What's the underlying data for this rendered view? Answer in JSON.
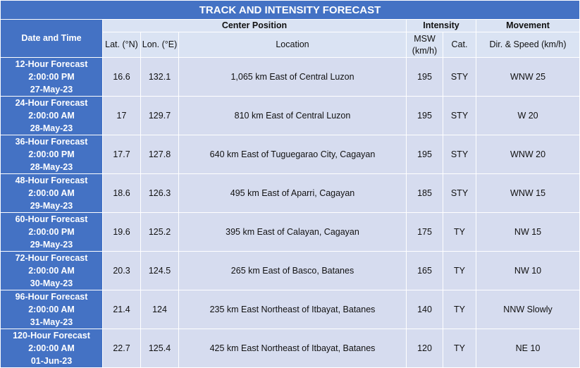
{
  "header": {
    "title": "TRACK AND INTENSITY FORECAST"
  },
  "table": {
    "groups": {
      "date_time": "Date and Time",
      "center_position": "Center Position",
      "intensity": "Intensity",
      "movement": "Movement"
    },
    "columns": {
      "lat": "Lat. (°N)",
      "lon": "Lon. (°E)",
      "location": "Location",
      "msw": "MSW (km/h)",
      "cat": "Cat.",
      "dir_speed": "Dir. & Speed (km/h)"
    },
    "rows": [
      {
        "date": [
          "12-Hour Forecast",
          "2:00:00 PM",
          "27-May-23"
        ],
        "lat": 16.6,
        "lon": 132.1,
        "location": "1,065 km East of Central Luzon",
        "msw": 195,
        "cat": "STY",
        "movement": "WNW 25"
      },
      {
        "date": [
          "24-Hour Forecast",
          "2:00:00 AM",
          "28-May-23"
        ],
        "lat": 17,
        "lon": 129.7,
        "location": "810 km East of Central Luzon",
        "msw": 195,
        "cat": "STY",
        "movement": "W 20"
      },
      {
        "date": [
          "36-Hour Forecast",
          "2:00:00 PM",
          "28-May-23"
        ],
        "lat": 17.7,
        "lon": 127.8,
        "location": "640 km East of Tuguegarao City, Cagayan",
        "msw": 195,
        "cat": "STY",
        "movement": "WNW 20"
      },
      {
        "date": [
          "48-Hour Forecast",
          "2:00:00 AM",
          "29-May-23"
        ],
        "lat": 18.6,
        "lon": 126.3,
        "location": "495 km East of Aparri, Cagayan",
        "msw": 185,
        "cat": "STY",
        "movement": "WNW 15"
      },
      {
        "date": [
          "60-Hour Forecast",
          "2:00:00 PM",
          "29-May-23"
        ],
        "lat": 19.6,
        "lon": 125.2,
        "location": "395 km East of Calayan, Cagayan",
        "msw": 175,
        "cat": "TY",
        "movement": "NW 15"
      },
      {
        "date": [
          "72-Hour Forecast",
          "2:00:00 AM",
          "30-May-23"
        ],
        "lat": 20.3,
        "lon": 124.5,
        "location": "265 km East of Basco, Batanes",
        "msw": 165,
        "cat": "TY",
        "movement": "NW 10"
      },
      {
        "date": [
          "96-Hour Forecast",
          "2:00:00 AM",
          "31-May-23"
        ],
        "lat": 21.4,
        "lon": 124,
        "location": "235 km East Northeast of Itbayat, Batanes",
        "msw": 140,
        "cat": "TY",
        "movement": "NNW Slowly"
      },
      {
        "date": [
          "120-Hour Forecast",
          "2:00:00 AM",
          "01-Jun-23"
        ],
        "lat": 22.7,
        "lon": 125.4,
        "location": "425 km East Northeast of Itbayat, Batanes",
        "msw": 120,
        "cat": "TY",
        "movement": "NE 10"
      }
    ]
  }
}
